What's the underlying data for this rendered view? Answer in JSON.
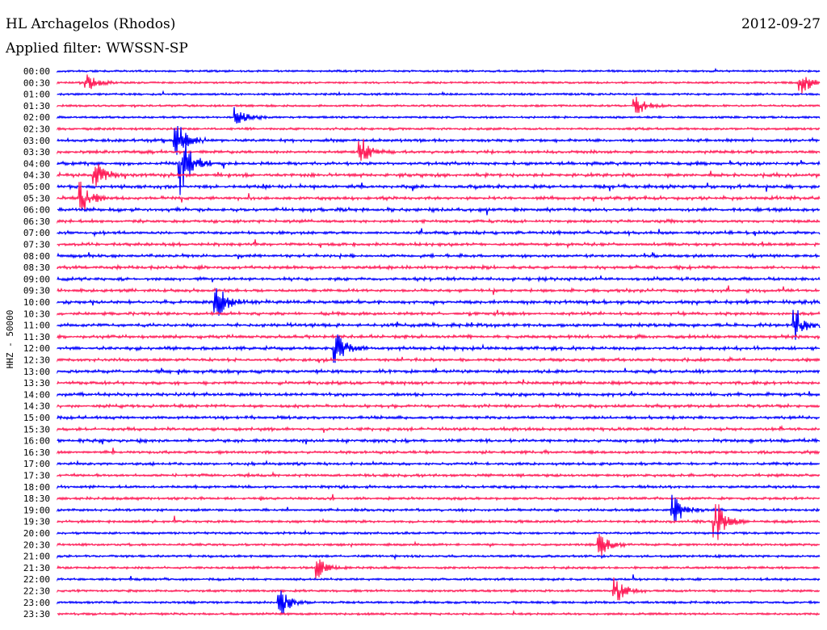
{
  "header": {
    "station": "HL Archagelos (Rhodos)",
    "filter": "Applied filter: WWSSN-SP",
    "date": "2012-09-27"
  },
  "chart_data": {
    "type": "line",
    "title": "HL Archagelos (Rhodos)",
    "ylabel": "HHZ - 50000",
    "xlabel": "",
    "minutes_per_row": 30,
    "colors": {
      "even": "#0000ff",
      "odd": "#ff1f5a"
    },
    "row_labels": [
      "00:00",
      "00:30",
      "01:00",
      "01:30",
      "02:00",
      "02:30",
      "03:00",
      "03:30",
      "04:00",
      "04:30",
      "05:00",
      "05:30",
      "06:00",
      "06:30",
      "07:00",
      "07:30",
      "08:00",
      "08:30",
      "09:00",
      "09:30",
      "10:00",
      "10:30",
      "11:00",
      "11:30",
      "12:00",
      "12:30",
      "13:00",
      "13:30",
      "14:00",
      "14:30",
      "15:00",
      "15:30",
      "16:00",
      "16:30",
      "17:00",
      "17:30",
      "18:00",
      "18:30",
      "19:00",
      "19:30",
      "20:00",
      "20:30",
      "21:00",
      "21:30",
      "22:00",
      "22:30",
      "23:00",
      "23:30"
    ],
    "noise_level": [
      0.15,
      0.15,
      0.2,
      0.2,
      0.2,
      0.3,
      0.6,
      0.6,
      0.8,
      0.9,
      0.9,
      0.8,
      0.8,
      0.6,
      0.6,
      0.6,
      0.7,
      0.7,
      0.7,
      0.7,
      0.9,
      0.7,
      0.8,
      0.7,
      0.8,
      0.6,
      0.7,
      0.7,
      0.7,
      0.6,
      0.6,
      0.6,
      0.7,
      0.5,
      0.5,
      0.5,
      0.5,
      0.4,
      0.4,
      0.4,
      0.3,
      0.3,
      0.3,
      0.3,
      0.3,
      0.3,
      0.3,
      0.25
    ],
    "events": [
      {
        "row": 1,
        "minute": 1.2,
        "amp": 1.0
      },
      {
        "row": 1,
        "minute": 29.3,
        "amp": 1.4
      },
      {
        "row": 3,
        "minute": 22.8,
        "amp": 1.0
      },
      {
        "row": 4,
        "minute": 7.1,
        "amp": 1.0
      },
      {
        "row": 6,
        "minute": 4.7,
        "amp": 2.0
      },
      {
        "row": 8,
        "minute": 4.9,
        "amp": 3.5
      },
      {
        "row": 7,
        "minute": 12.0,
        "amp": 1.5
      },
      {
        "row": 9,
        "minute": 1.5,
        "amp": 1.6
      },
      {
        "row": 11,
        "minute": 1.0,
        "amp": 1.6
      },
      {
        "row": 20,
        "minute": 6.3,
        "amp": 1.8
      },
      {
        "row": 24,
        "minute": 11.0,
        "amp": 1.8
      },
      {
        "row": 22,
        "minute": 29.1,
        "amp": 1.6
      },
      {
        "row": 39,
        "minute": 25.9,
        "amp": 2.5
      },
      {
        "row": 46,
        "minute": 8.8,
        "amp": 1.5
      },
      {
        "row": 45,
        "minute": 22.0,
        "amp": 1.3
      },
      {
        "row": 41,
        "minute": 21.4,
        "amp": 1.4
      },
      {
        "row": 43,
        "minute": 10.3,
        "amp": 1.0
      },
      {
        "row": 38,
        "minute": 24.3,
        "amp": 1.5
      }
    ]
  }
}
